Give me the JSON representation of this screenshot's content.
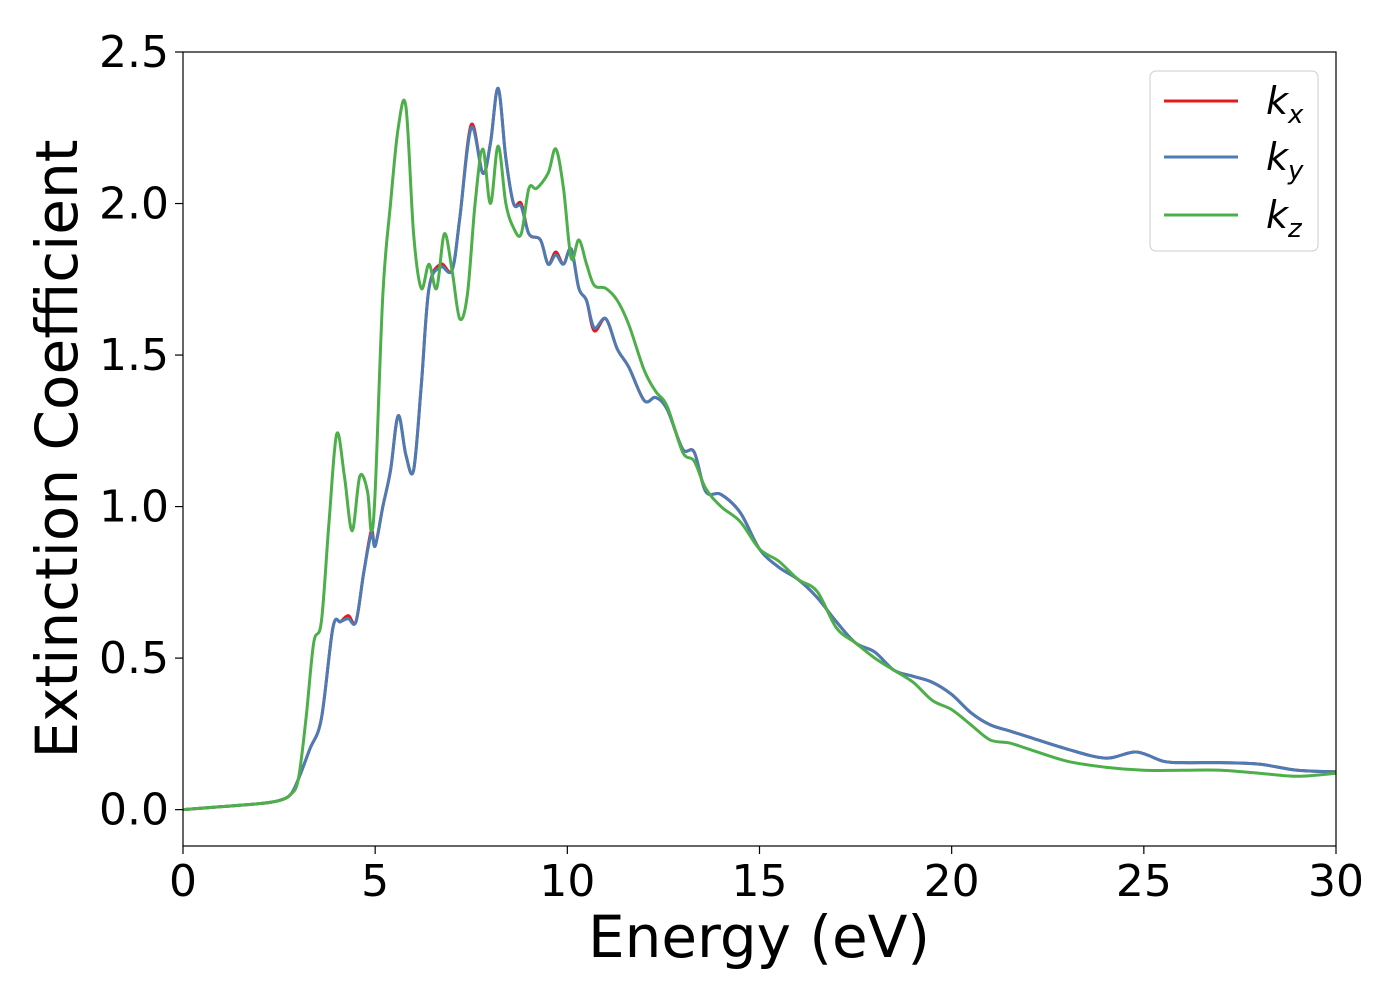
{
  "chart_data": {
    "type": "line",
    "title": "",
    "xlabel": "Energy (eV)",
    "ylabel": "Extinction Coefficient",
    "xlim": [
      0,
      30
    ],
    "ylim": [
      -0.12,
      2.5
    ],
    "xticks": [
      0,
      5,
      10,
      15,
      20,
      25,
      30
    ],
    "xtick_labels": [
      "0",
      "5",
      "10",
      "15",
      "20",
      "25",
      "30"
    ],
    "yticks": [
      0.0,
      0.5,
      1.0,
      1.5,
      2.0,
      2.5
    ],
    "ytick_labels": [
      "0.0",
      "0.5",
      "1.0",
      "1.5",
      "2.0",
      "2.5"
    ],
    "grid": false,
    "legend_position": "top-right",
    "series": [
      {
        "name": "k",
        "subscript": "x",
        "color": "#e41a1c",
        "x": [
          0,
          1,
          2,
          2.5,
          2.8,
          3.0,
          3.3,
          3.6,
          3.9,
          4.1,
          4.3,
          4.5,
          4.7,
          4.9,
          5.0,
          5.2,
          5.4,
          5.6,
          5.8,
          6.0,
          6.2,
          6.4,
          6.7,
          7.0,
          7.2,
          7.5,
          7.8,
          8.0,
          8.2,
          8.4,
          8.6,
          8.8,
          9.0,
          9.3,
          9.5,
          9.7,
          9.9,
          10.1,
          10.3,
          10.5,
          10.7,
          11.0,
          11.3,
          11.6,
          12.0,
          12.3,
          12.6,
          13.0,
          13.3,
          13.6,
          14.0,
          14.5,
          15.0,
          15.5,
          16.0,
          16.5,
          17.0,
          17.5,
          18.0,
          18.5,
          19.0,
          19.5,
          20.0,
          20.5,
          21.0,
          21.5,
          22.0,
          23.0,
          24.0,
          24.8,
          25.5,
          26.0,
          27.0,
          28.0,
          29.0,
          30.0
        ],
        "y": [
          0.0,
          0.01,
          0.02,
          0.03,
          0.05,
          0.1,
          0.2,
          0.3,
          0.6,
          0.62,
          0.64,
          0.62,
          0.78,
          0.92,
          0.87,
          1.0,
          1.12,
          1.3,
          1.17,
          1.12,
          1.4,
          1.72,
          1.8,
          1.78,
          1.95,
          2.26,
          2.1,
          2.2,
          2.38,
          2.15,
          2.0,
          2.0,
          1.9,
          1.88,
          1.8,
          1.84,
          1.8,
          1.85,
          1.72,
          1.68,
          1.58,
          1.62,
          1.52,
          1.46,
          1.35,
          1.36,
          1.32,
          1.19,
          1.18,
          1.05,
          1.04,
          0.98,
          0.86,
          0.8,
          0.76,
          0.7,
          0.62,
          0.55,
          0.52,
          0.46,
          0.44,
          0.42,
          0.38,
          0.32,
          0.28,
          0.26,
          0.24,
          0.2,
          0.17,
          0.19,
          0.16,
          0.155,
          0.155,
          0.15,
          0.13,
          0.125
        ]
      },
      {
        "name": "k",
        "subscript": "y",
        "color": "#4c7cb5",
        "x": [
          0,
          1,
          2,
          2.5,
          2.8,
          3.0,
          3.3,
          3.6,
          3.9,
          4.1,
          4.3,
          4.5,
          4.7,
          4.9,
          5.0,
          5.2,
          5.4,
          5.6,
          5.8,
          6.0,
          6.2,
          6.4,
          6.7,
          7.0,
          7.2,
          7.5,
          7.8,
          8.0,
          8.2,
          8.4,
          8.6,
          8.8,
          9.0,
          9.3,
          9.5,
          9.7,
          9.9,
          10.1,
          10.3,
          10.5,
          10.7,
          11.0,
          11.3,
          11.6,
          12.0,
          12.3,
          12.6,
          13.0,
          13.3,
          13.6,
          14.0,
          14.5,
          15.0,
          15.5,
          16.0,
          16.5,
          17.0,
          17.5,
          18.0,
          18.5,
          19.0,
          19.5,
          20.0,
          20.5,
          21.0,
          21.5,
          22.0,
          23.0,
          24.0,
          24.8,
          25.5,
          26.0,
          27.0,
          28.0,
          29.0,
          30.0
        ],
        "y": [
          0.0,
          0.01,
          0.02,
          0.03,
          0.05,
          0.1,
          0.2,
          0.3,
          0.6,
          0.62,
          0.63,
          0.62,
          0.78,
          0.91,
          0.87,
          1.0,
          1.12,
          1.3,
          1.17,
          1.12,
          1.4,
          1.72,
          1.79,
          1.78,
          1.95,
          2.25,
          2.1,
          2.2,
          2.38,
          2.15,
          2.0,
          1.99,
          1.9,
          1.88,
          1.8,
          1.83,
          1.8,
          1.85,
          1.72,
          1.68,
          1.59,
          1.62,
          1.52,
          1.46,
          1.35,
          1.36,
          1.32,
          1.19,
          1.18,
          1.05,
          1.04,
          0.98,
          0.86,
          0.8,
          0.76,
          0.7,
          0.62,
          0.55,
          0.52,
          0.46,
          0.44,
          0.42,
          0.38,
          0.32,
          0.28,
          0.26,
          0.24,
          0.2,
          0.17,
          0.19,
          0.16,
          0.155,
          0.155,
          0.15,
          0.13,
          0.125
        ]
      },
      {
        "name": "k",
        "subscript": "z",
        "color": "#4daf4a",
        "x": [
          0,
          1,
          2,
          2.5,
          2.8,
          3.0,
          3.2,
          3.4,
          3.6,
          3.8,
          4.0,
          4.2,
          4.4,
          4.6,
          4.8,
          4.9,
          5.0,
          5.2,
          5.4,
          5.6,
          5.8,
          6.0,
          6.2,
          6.4,
          6.6,
          6.8,
          7.0,
          7.2,
          7.4,
          7.6,
          7.8,
          8.0,
          8.2,
          8.4,
          8.6,
          8.8,
          9.0,
          9.2,
          9.5,
          9.7,
          9.9,
          10.1,
          10.3,
          10.5,
          10.7,
          11.0,
          11.3,
          11.6,
          12.0,
          12.3,
          12.6,
          13.0,
          13.3,
          13.6,
          14.0,
          14.5,
          15.0,
          15.5,
          16.0,
          16.5,
          17.0,
          17.5,
          18.0,
          18.5,
          19.0,
          19.5,
          20.0,
          20.5,
          21.0,
          21.5,
          22.0,
          23.0,
          24.0,
          25.0,
          26.0,
          27.0,
          28.0,
          29.0,
          30.0
        ],
        "y": [
          0.0,
          0.01,
          0.02,
          0.03,
          0.05,
          0.1,
          0.3,
          0.55,
          0.62,
          0.95,
          1.24,
          1.1,
          0.92,
          1.1,
          1.05,
          0.92,
          1.05,
          1.7,
          2.0,
          2.25,
          2.32,
          1.9,
          1.72,
          1.8,
          1.72,
          1.9,
          1.78,
          1.62,
          1.7,
          2.0,
          2.18,
          2.0,
          2.19,
          2.0,
          1.92,
          1.9,
          2.05,
          2.05,
          2.1,
          2.18,
          2.05,
          1.82,
          1.88,
          1.8,
          1.73,
          1.72,
          1.68,
          1.6,
          1.45,
          1.38,
          1.33,
          1.18,
          1.15,
          1.06,
          1.0,
          0.95,
          0.86,
          0.82,
          0.76,
          0.72,
          0.6,
          0.55,
          0.5,
          0.46,
          0.42,
          0.36,
          0.33,
          0.28,
          0.23,
          0.22,
          0.2,
          0.16,
          0.14,
          0.13,
          0.13,
          0.13,
          0.12,
          0.11,
          0.12
        ]
      }
    ]
  }
}
